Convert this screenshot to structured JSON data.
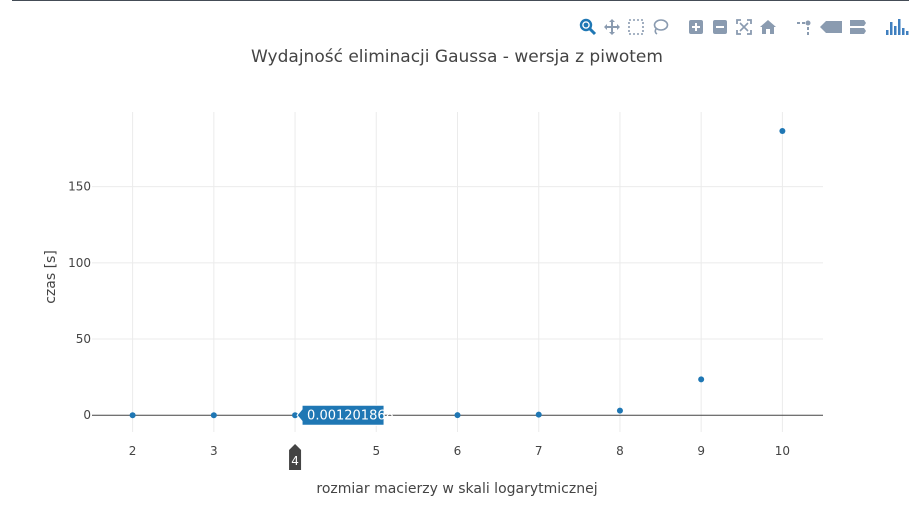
{
  "modebar": {
    "buttons": [
      {
        "name": "zoom-icon",
        "color": "#1f77b4"
      },
      {
        "name": "pan-icon",
        "color": "#8a9bb0"
      },
      {
        "name": "box-select-icon",
        "color": "#8a9bb0"
      },
      {
        "name": "lasso-select-icon",
        "color": "#8a9bb0"
      },
      {
        "name": "zoom-in-icon",
        "color": "#8a9bb0"
      },
      {
        "name": "zoom-out-icon",
        "color": "#8a9bb0"
      },
      {
        "name": "autoscale-icon",
        "color": "#8a9bb0"
      },
      {
        "name": "reset-axes-icon",
        "color": "#8a9bb0"
      },
      {
        "name": "toggle-spike-lines-icon",
        "color": "#8a9bb0"
      },
      {
        "name": "show-closest-data-icon",
        "color": "#8a9bb0"
      },
      {
        "name": "compare-data-icon",
        "color": "#8a9bb0"
      },
      {
        "name": "plotly-logo-icon",
        "color": "#3f7fbf"
      }
    ]
  },
  "chart_data": {
    "type": "scatter",
    "title": "Wydajność eliminacji Gaussa - wersja z piwotem",
    "xlabel": "rozmiar macierzy w skali logarytmicznej",
    "ylabel": "czas [s]",
    "x": [
      2,
      3,
      4,
      5,
      6,
      7,
      8,
      9,
      10
    ],
    "y": [
      1e-05,
      0.0001,
      0.001201868,
      0.01,
      0.08,
      0.4,
      3.0,
      23.5,
      186.5
    ],
    "xlim": [
      1.5,
      10.5
    ],
    "ylim": [
      -11,
      199
    ],
    "xticks": [
      2,
      3,
      4,
      5,
      6,
      7,
      8,
      9,
      10
    ],
    "yticks": [
      0,
      50,
      100,
      150
    ],
    "grid": true,
    "marker_color": "#1f77b4",
    "hover": {
      "point_index": 2,
      "y_text": "0.001201868",
      "x_text": "4"
    }
  }
}
